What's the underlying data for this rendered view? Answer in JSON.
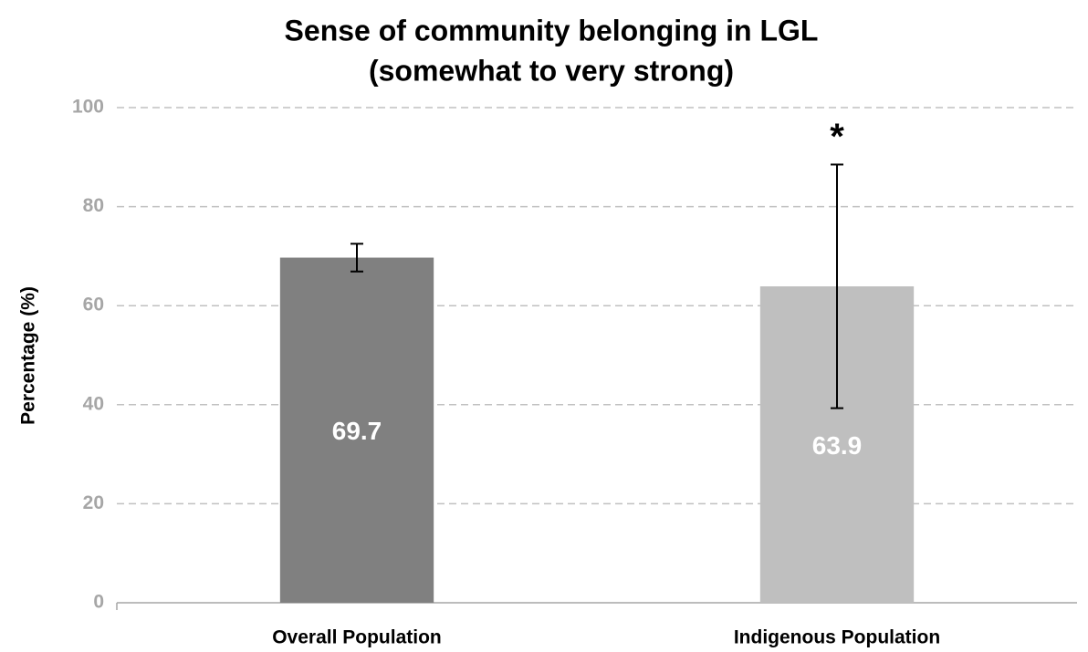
{
  "chart_data": {
    "type": "bar",
    "title": "Sense of community belonging in LGL",
    "subtitle": "(somewhat to very strong)",
    "y_label": "Percentage (%)",
    "categories": [
      "Overall Population",
      "Indigenous Population"
    ],
    "values": [
      69.7,
      63.9
    ],
    "errors": [
      2.8,
      24.6
    ],
    "colors": [
      "#808080",
      "#bfbfbf"
    ],
    "annotation": "*",
    "ylim": [
      0,
      100
    ],
    "yticks": [
      0,
      20,
      40,
      60,
      80,
      100
    ],
    "grid": true
  }
}
